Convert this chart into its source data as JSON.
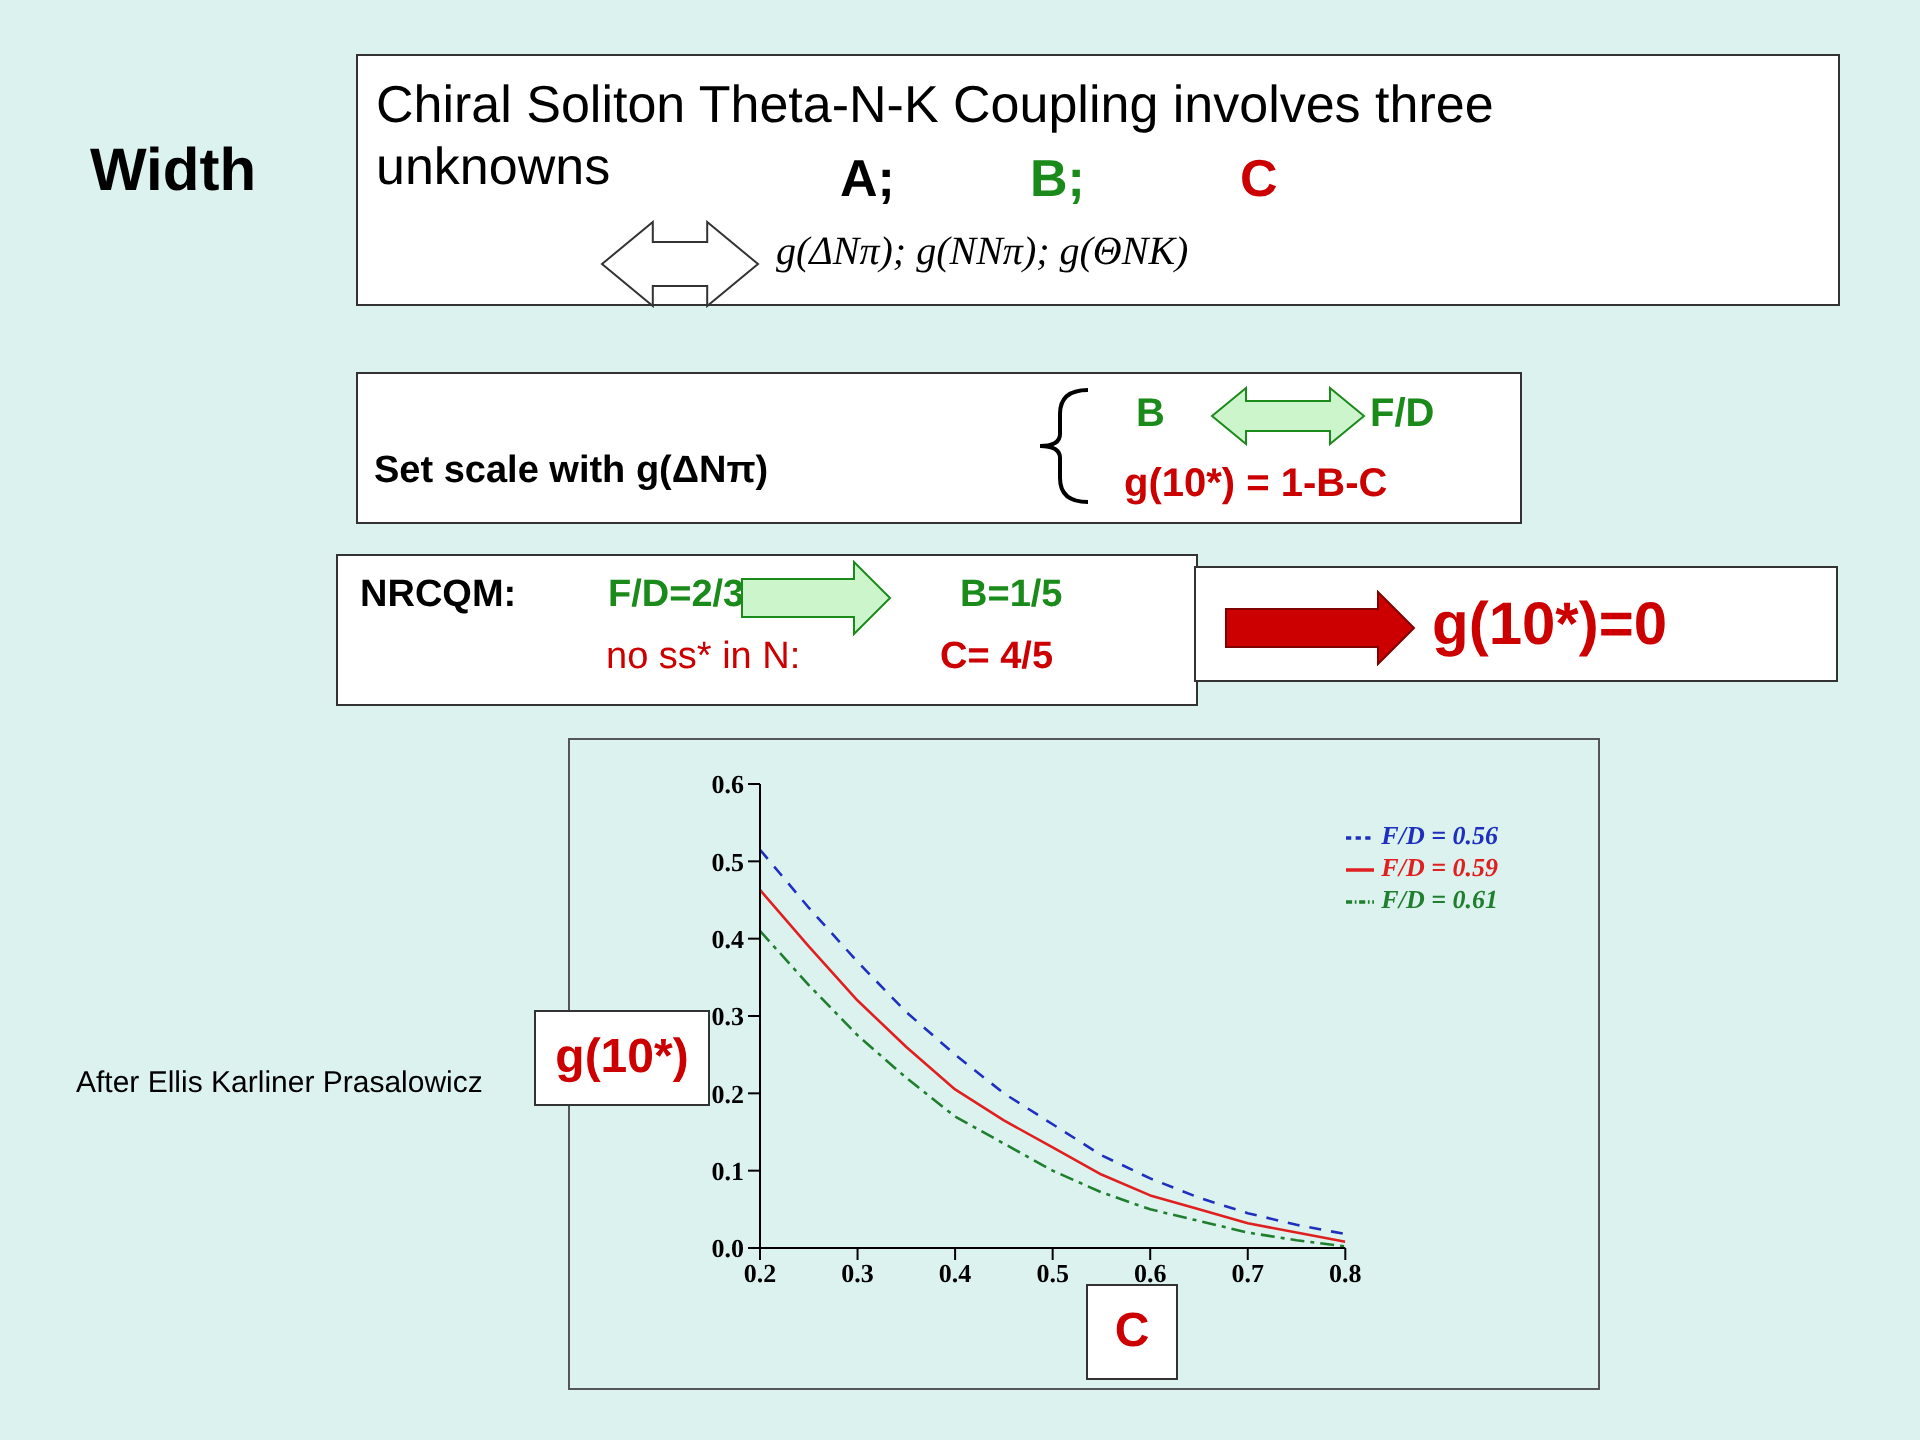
{
  "chart_data": {
    "type": "line",
    "xlabel": "C",
    "ylabel": "g(10*)",
    "x": [
      0.2,
      0.25,
      0.3,
      0.35,
      0.4,
      0.45,
      0.5,
      0.55,
      0.6,
      0.65,
      0.7,
      0.75,
      0.8
    ],
    "series": [
      {
        "name": "F/D = 0.56",
        "color": "#1f2fbf",
        "line_style": "dashed",
        "values": [
          0.515,
          0.44,
          0.37,
          0.305,
          0.25,
          0.2,
          0.16,
          0.12,
          0.09,
          0.065,
          0.045,
          0.03,
          0.018
        ]
      },
      {
        "name": "F/D = 0.59",
        "color": "#e02020",
        "line_style": "solid",
        "values": [
          0.463,
          0.39,
          0.32,
          0.26,
          0.205,
          0.165,
          0.13,
          0.095,
          0.068,
          0.05,
          0.032,
          0.02,
          0.008
        ]
      },
      {
        "name": "F/D = 0.61",
        "color": "#1f7f2f",
        "line_style": "dashdot",
        "values": [
          0.41,
          0.34,
          0.275,
          0.22,
          0.17,
          0.135,
          0.1,
          0.072,
          0.05,
          0.035,
          0.02,
          0.01,
          0.002
        ]
      }
    ],
    "xlim": [
      0.2,
      0.8
    ],
    "xticks": [
      0.2,
      0.3,
      0.4,
      0.5,
      0.6,
      0.7,
      0.8
    ],
    "ylim": [
      0,
      0.6
    ],
    "yticks": [
      {
        "value": 0,
        "label": "0.0"
      },
      0.1,
      0.2,
      0.3,
      0.4,
      0.5,
      0.6
    ],
    "legend": "top right",
    "marker": "none",
    "grid": false,
    "annotations": [
      "Width",
      "Chiral Soliton Theta-N-K Coupling involves three unknowns",
      "A;",
      "B;",
      "C",
      "g(ΔNπ); g(NNπ); g(ΘNK)",
      "Set scale with g(ΔNπ)",
      "B",
      "F/D",
      "g(10*) = 1-B-C",
      "NRCQM:",
      "F/D=2/3",
      "B=1/5",
      "no ss* in N:",
      "C= 4/5",
      "g(10*)=0",
      "After Ellis Karliner Prasalowicz"
    ]
  }
}
